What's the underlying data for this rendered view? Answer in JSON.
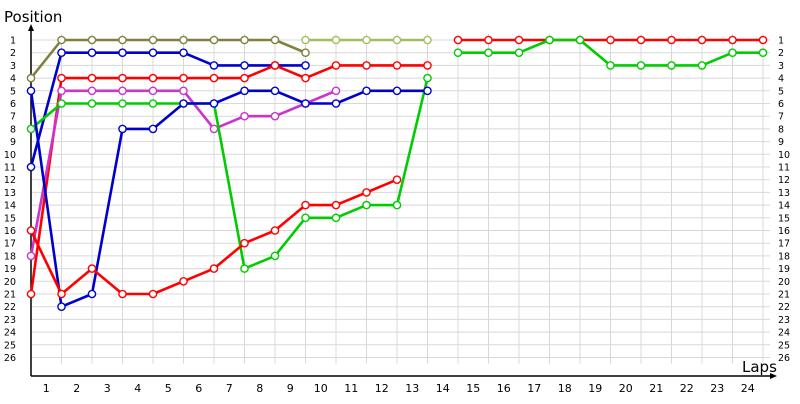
{
  "chart_data": {
    "type": "line",
    "ylabel": "Position",
    "xlabel": "Laps",
    "x_ticks": [
      1,
      2,
      3,
      4,
      5,
      6,
      7,
      8,
      9,
      10,
      11,
      12,
      13,
      14,
      15,
      16,
      17,
      18,
      19,
      20,
      21,
      22,
      23,
      24
    ],
    "y_ticks": [
      1,
      2,
      3,
      4,
      5,
      6,
      7,
      8,
      9,
      10,
      11,
      12,
      13,
      14,
      15,
      16,
      17,
      18,
      19,
      20,
      21,
      22,
      23,
      24,
      25,
      26
    ],
    "right_y_ticks": [
      1,
      2,
      3,
      4,
      5,
      6,
      7,
      8,
      9,
      10,
      11,
      12,
      13,
      14,
      15,
      16,
      17,
      18,
      19,
      20,
      21,
      22,
      23,
      24,
      25,
      26
    ],
    "xlim": [
      0,
      24
    ],
    "ylim": [
      1,
      26
    ],
    "grid": true,
    "x_arrow": true,
    "y_arrow": true,
    "series": [
      {
        "color": "#808040",
        "x": [
          0,
          1,
          2,
          3,
          4,
          5,
          6,
          7,
          8,
          9
        ],
        "y": [
          4,
          1,
          1,
          1,
          1,
          1,
          1,
          1,
          1,
          2
        ]
      },
      {
        "color": "#ff0000",
        "x": [
          14,
          15,
          16,
          17,
          18,
          19,
          20,
          21,
          22,
          23,
          24
        ],
        "y": [
          1,
          1,
          1,
          1,
          1,
          1,
          1,
          1,
          1,
          1,
          1
        ]
      },
      {
        "color": "#a0c060",
        "x": [
          9,
          10,
          11,
          12,
          13
        ],
        "y": [
          1,
          1,
          1,
          1,
          1
        ]
      },
      {
        "color": "#0000cc",
        "x": [
          0,
          1,
          2,
          3,
          4,
          5,
          6,
          7,
          8,
          9
        ],
        "y": [
          11,
          2,
          2,
          2,
          2,
          2,
          3,
          3,
          3,
          3
        ]
      },
      {
        "color": "#00cc00",
        "x": [
          14,
          15,
          16,
          17,
          18,
          19,
          20,
          21,
          22,
          23,
          24
        ],
        "y": [
          2,
          2,
          2,
          1,
          1,
          3,
          3,
          3,
          3,
          2,
          2
        ]
      },
      {
        "color": "#ff0000",
        "x": [
          0,
          1,
          2,
          3,
          4,
          5,
          6,
          7,
          8,
          9,
          10,
          11,
          12,
          13
        ],
        "y": [
          21,
          4,
          4,
          4,
          4,
          4,
          4,
          4,
          3,
          4,
          3,
          3,
          3,
          3
        ]
      },
      {
        "color": "#cc33cc",
        "x": [
          0,
          1,
          2,
          3,
          4,
          5,
          6,
          7,
          8,
          9,
          10
        ],
        "y": [
          18,
          5,
          5,
          5,
          5,
          5,
          8,
          7,
          7,
          6,
          5
        ]
      },
      {
        "color": "#00cc00",
        "x": [
          0,
          1,
          2,
          3,
          4,
          5,
          6,
          7,
          8,
          9,
          10,
          11,
          12,
          13
        ],
        "y": [
          8,
          6,
          6,
          6,
          6,
          6,
          6,
          19,
          18,
          15,
          15,
          14,
          14,
          4
        ]
      },
      {
        "color": "#0000cc",
        "x": [
          0,
          1,
          2,
          3,
          4,
          5,
          6,
          7,
          8,
          9,
          10,
          11,
          12,
          13
        ],
        "y": [
          5,
          22,
          21,
          8,
          8,
          6,
          6,
          5,
          5,
          6,
          6,
          5,
          5,
          5
        ]
      },
      {
        "color": "#ff0000",
        "x": [
          0,
          1,
          2,
          3,
          4,
          5,
          6,
          7,
          8,
          9,
          10,
          11,
          12
        ],
        "y": [
          16,
          21,
          19,
          21,
          21,
          20,
          19,
          17,
          16,
          14,
          14,
          13,
          12
        ]
      }
    ]
  }
}
